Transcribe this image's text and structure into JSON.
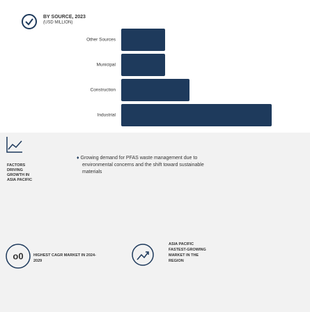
{
  "chart_data": {
    "type": "bar",
    "title": "BY SOURCE, 2023",
    "subtitle": "(USD MILLION)",
    "categories": [
      "Other Sources",
      "Municipal",
      "Construction",
      "Industrial"
    ],
    "values": [
      63,
      63,
      98,
      216
    ],
    "color": "#1e3a5c",
    "xlim": [
      0,
      220
    ]
  },
  "factors": {
    "heading": "FACTORS DRIVING GROWTH IN ASIA PACIFIC",
    "bullet": "Growing demand for PFAS waste management due to environmental concerns and the shift toward sustainable materials"
  },
  "highlights": [
    {
      "text": "HIGHEST CAGR MARKET IN 2024-2029"
    },
    {
      "text": "ASIA PACIFIC FASTEST-GROWING MARKET IN THE REGION"
    }
  ]
}
